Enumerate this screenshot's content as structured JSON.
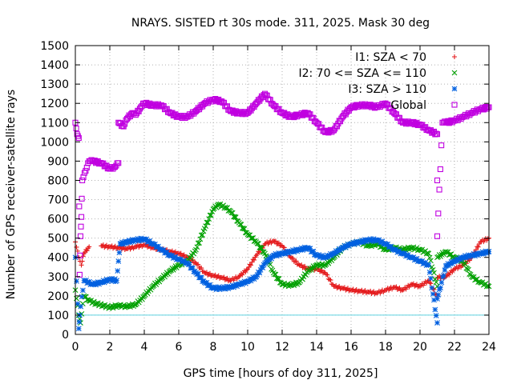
{
  "chart_data": {
    "type": "scatter",
    "title": "NRAYS. SISTED rt 30s mode. 311, 2025. Mask 30 deg",
    "xlabel": "GPS time [hours of doy 311, 2025]",
    "ylabel": "Number of GPS receiver-satellite rays",
    "xlim": [
      0,
      24
    ],
    "ylim": [
      0,
      1500
    ],
    "xticks": [
      0,
      2,
      4,
      6,
      8,
      10,
      12,
      14,
      16,
      18,
      20,
      22,
      24
    ],
    "yticks": [
      0,
      100,
      200,
      300,
      400,
      500,
      600,
      700,
      800,
      900,
      1000,
      1100,
      1200,
      1300,
      1400,
      1500
    ],
    "grid": true,
    "legend_position": "top-right",
    "reference_line": {
      "y": 100,
      "color": "#5fd3e0"
    },
    "series": [
      {
        "name": "I1: SZA < 70",
        "marker": "plus",
        "color": "#e41a1c",
        "points": [
          [
            0,
            480
          ],
          [
            0.2,
            400
          ],
          [
            0.35,
            360
          ],
          [
            0.5,
            420
          ],
          [
            0.8,
            455
          ],
          [
            1.5,
            460
          ],
          [
            2,
            455
          ],
          [
            2.5,
            450
          ],
          [
            3,
            445
          ],
          [
            3.5,
            455
          ],
          [
            4,
            465
          ],
          [
            4.5,
            450
          ],
          [
            5,
            440
          ],
          [
            5.5,
            430
          ],
          [
            6,
            420
          ],
          [
            6.5,
            400
          ],
          [
            7,
            370
          ],
          [
            7.5,
            320
          ],
          [
            8,
            305
          ],
          [
            8.5,
            295
          ],
          [
            9,
            280
          ],
          [
            9.5,
            300
          ],
          [
            10,
            340
          ],
          [
            10.5,
            410
          ],
          [
            11,
            470
          ],
          [
            11.5,
            485
          ],
          [
            12,
            460
          ],
          [
            12.5,
            400
          ],
          [
            13,
            360
          ],
          [
            13.5,
            340
          ],
          [
            14,
            340
          ],
          [
            14.5,
            320
          ],
          [
            15,
            250
          ],
          [
            15.5,
            240
          ],
          [
            16,
            230
          ],
          [
            16.5,
            225
          ],
          [
            17,
            220
          ],
          [
            17.5,
            215
          ],
          [
            18,
            230
          ],
          [
            18.5,
            245
          ],
          [
            19,
            230
          ],
          [
            19.5,
            260
          ],
          [
            20,
            250
          ],
          [
            20.5,
            280
          ],
          [
            21,
            195
          ],
          [
            21,
            295
          ],
          [
            21.5,
            300
          ],
          [
            22,
            340
          ],
          [
            22.5,
            360
          ],
          [
            23,
            400
          ],
          [
            23.5,
            480
          ],
          [
            24,
            500
          ]
        ]
      },
      {
        "name": "I2: 70 <= SZA <= 110",
        "marker": "cross",
        "color": "#00a000",
        "points": [
          [
            0,
            230
          ],
          [
            0.2,
            100
          ],
          [
            0.3,
            60
          ],
          [
            0.5,
            200
          ],
          [
            0.8,
            175
          ],
          [
            1.2,
            160
          ],
          [
            1.6,
            150
          ],
          [
            2,
            140
          ],
          [
            2.5,
            150
          ],
          [
            3,
            145
          ],
          [
            3.5,
            155
          ],
          [
            4,
            200
          ],
          [
            4.5,
            250
          ],
          [
            5,
            290
          ],
          [
            5.5,
            330
          ],
          [
            6,
            360
          ],
          [
            6.5,
            380
          ],
          [
            7,
            440
          ],
          [
            7.5,
            550
          ],
          [
            8,
            650
          ],
          [
            8.3,
            675
          ],
          [
            8.7,
            660
          ],
          [
            9,
            640
          ],
          [
            9.5,
            580
          ],
          [
            10,
            520
          ],
          [
            10.5,
            480
          ],
          [
            11,
            420
          ],
          [
            11.5,
            320
          ],
          [
            12,
            260
          ],
          [
            12.5,
            255
          ],
          [
            13,
            270
          ],
          [
            13.5,
            330
          ],
          [
            14,
            360
          ],
          [
            14.5,
            360
          ],
          [
            15,
            400
          ],
          [
            15.5,
            450
          ],
          [
            16,
            470
          ],
          [
            16.5,
            480
          ],
          [
            17,
            460
          ],
          [
            17.5,
            470
          ],
          [
            18,
            440
          ],
          [
            18.5,
            450
          ],
          [
            19,
            440
          ],
          [
            19.5,
            450
          ],
          [
            20,
            440
          ],
          [
            20.5,
            420
          ],
          [
            21,
            250
          ],
          [
            21,
            400
          ],
          [
            21.5,
            430
          ],
          [
            22,
            400
          ],
          [
            22.5,
            380
          ],
          [
            23,
            300
          ],
          [
            23.5,
            270
          ],
          [
            24,
            250
          ]
        ]
      },
      {
        "name": "I3: SZA > 110",
        "marker": "star",
        "color": "#0060e0",
        "points": [
          [
            0,
            400
          ],
          [
            0.2,
            30
          ],
          [
            0.25,
            100
          ],
          [
            0.5,
            280
          ],
          [
            1,
            260
          ],
          [
            1.5,
            270
          ],
          [
            2,
            285
          ],
          [
            2.4,
            280
          ],
          [
            2.5,
            380
          ],
          [
            2.6,
            470
          ],
          [
            3,
            480
          ],
          [
            3.5,
            490
          ],
          [
            4,
            495
          ],
          [
            4.5,
            470
          ],
          [
            5,
            440
          ],
          [
            5.5,
            410
          ],
          [
            6,
            390
          ],
          [
            6.5,
            370
          ],
          [
            7,
            320
          ],
          [
            7.5,
            270
          ],
          [
            8,
            240
          ],
          [
            8.5,
            240
          ],
          [
            9,
            245
          ],
          [
            9.5,
            260
          ],
          [
            10,
            275
          ],
          [
            10.5,
            300
          ],
          [
            11,
            370
          ],
          [
            11.5,
            410
          ],
          [
            12,
            420
          ],
          [
            12.5,
            430
          ],
          [
            13,
            440
          ],
          [
            13.5,
            450
          ],
          [
            14,
            410
          ],
          [
            14.5,
            400
          ],
          [
            15,
            420
          ],
          [
            15.5,
            450
          ],
          [
            16,
            470
          ],
          [
            16.5,
            480
          ],
          [
            17,
            490
          ],
          [
            17.5,
            490
          ],
          [
            18,
            470
          ],
          [
            18.5,
            440
          ],
          [
            19,
            420
          ],
          [
            19.5,
            400
          ],
          [
            20,
            380
          ],
          [
            20.5,
            360
          ],
          [
            21,
            60
          ],
          [
            21,
            185
          ],
          [
            21.5,
            355
          ],
          [
            22,
            380
          ],
          [
            22.5,
            400
          ],
          [
            23,
            410
          ],
          [
            23.5,
            420
          ],
          [
            24,
            430
          ]
        ]
      },
      {
        "name": "Global",
        "marker": "square",
        "color": "#c000e0",
        "points": [
          [
            0,
            1100
          ],
          [
            0.1,
            1040
          ],
          [
            0.2,
            1020
          ],
          [
            0.25,
            310
          ],
          [
            0.3,
            510
          ],
          [
            0.35,
            610
          ],
          [
            0.4,
            800
          ],
          [
            0.6,
            850
          ],
          [
            0.8,
            900
          ],
          [
            1,
            900
          ],
          [
            1.5,
            890
          ],
          [
            2,
            860
          ],
          [
            2.3,
            870
          ],
          [
            2.5,
            890
          ],
          [
            2.5,
            1100
          ],
          [
            2.8,
            1080
          ],
          [
            3,
            1120
          ],
          [
            3.3,
            1150
          ],
          [
            3.5,
            1140
          ],
          [
            3.8,
            1180
          ],
          [
            4,
            1200
          ],
          [
            4.5,
            1190
          ],
          [
            5,
            1190
          ],
          [
            5.5,
            1150
          ],
          [
            6,
            1130
          ],
          [
            6.5,
            1130
          ],
          [
            7,
            1160
          ],
          [
            7.5,
            1200
          ],
          [
            8,
            1220
          ],
          [
            8.5,
            1210
          ],
          [
            9,
            1160
          ],
          [
            9.5,
            1150
          ],
          [
            10,
            1150
          ],
          [
            10.5,
            1200
          ],
          [
            11,
            1250
          ],
          [
            11.5,
            1190
          ],
          [
            12,
            1150
          ],
          [
            12.5,
            1130
          ],
          [
            13,
            1140
          ],
          [
            13.5,
            1150
          ],
          [
            14,
            1100
          ],
          [
            14.5,
            1050
          ],
          [
            15,
            1060
          ],
          [
            15.5,
            1130
          ],
          [
            16,
            1180
          ],
          [
            16.5,
            1190
          ],
          [
            17,
            1190
          ],
          [
            17.5,
            1180
          ],
          [
            18,
            1200
          ],
          [
            18.5,
            1150
          ],
          [
            19,
            1100
          ],
          [
            19.5,
            1100
          ],
          [
            20,
            1090
          ],
          [
            20.5,
            1060
          ],
          [
            21,
            1040
          ],
          [
            21,
            800
          ],
          [
            21,
            510
          ],
          [
            21.3,
            1100
          ],
          [
            21.5,
            1100
          ],
          [
            22,
            1110
          ],
          [
            22.5,
            1130
          ],
          [
            23,
            1150
          ],
          [
            23.5,
            1170
          ],
          [
            24,
            1180
          ]
        ]
      }
    ]
  }
}
